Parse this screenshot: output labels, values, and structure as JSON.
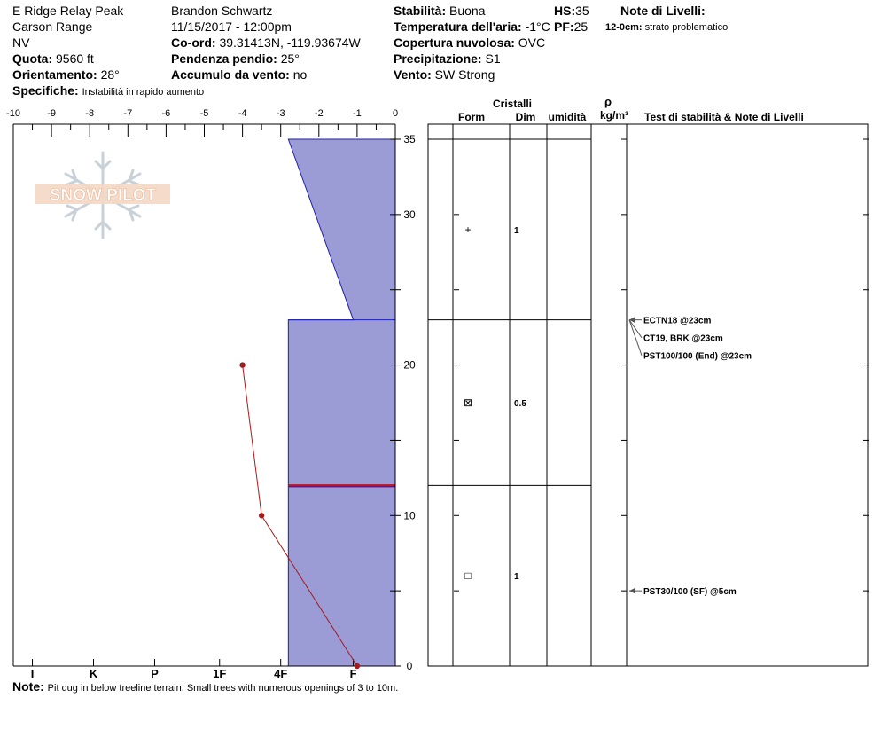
{
  "header": {
    "location": "E Ridge Relay Peak",
    "range": "Carson Range",
    "state": "NV",
    "elevation_label": "Quota:",
    "elevation": "9560 ft",
    "aspect_label": "Orientamento:",
    "aspect": "28°",
    "specifics_label": "Specifiche:",
    "specifics": "Instabilità in rapido aumento",
    "observer": "Brandon Schwartz",
    "datetime": "11/15/2017 - 12:00pm",
    "coord_label": "Co-ord:",
    "coord": "39.31413N, -119.93674W",
    "slope_label": "Pendenza pendio:",
    "slope": "25°",
    "wind_loading_label": "Accumulo da vento:",
    "wind_loading": "no",
    "stability_label": "Stabilità:",
    "stability": "Buona",
    "air_temp_label": "Temperatura dell'aria:",
    "air_temp": "-1°C",
    "sky_label": "Copertura nuvolosa:",
    "sky": "OVC",
    "precip_label": "Precipitazione:",
    "precip": "S1",
    "wind_label": "Vento:",
    "wind": "SW Strong",
    "hs_label": "HS:",
    "hs": "35",
    "pf_label": "PF:",
    "pf": "25",
    "layer_notes_label": "Note di Livelli:",
    "layer_note_depth": "12-0cm:",
    "layer_note_text": "strato problematico"
  },
  "note": {
    "label": "Note:",
    "text": "Pit dug in below treeline terrain. Small trees with numerous openings of 3 to 10m."
  },
  "logo": {
    "text": "SNOW PILOT",
    "icon": "snowflake-icon"
  },
  "colors": {
    "layer_fill": "#9b9bd6",
    "layer_edge": "#1f1fb0",
    "temp_line": "#a11d1d",
    "weak_layer": "#c1121f"
  },
  "chart_data": {
    "type": "snow-profile",
    "temp_axis": {
      "ticks": [
        -10,
        -9,
        -8,
        -7,
        -6,
        -5,
        -4,
        -3,
        -2,
        -1,
        0
      ],
      "tick_labels": [
        "-10",
        "-9",
        "-8",
        "-7",
        "-6",
        "-5",
        "-4",
        "-3",
        "-2",
        "-1",
        "0"
      ],
      "range": [
        -10,
        0
      ]
    },
    "height_axis": {
      "ticks": [
        0,
        10,
        20,
        30,
        35
      ],
      "tick_labels": [
        "0",
        "10",
        "20",
        "30",
        "35"
      ],
      "range": [
        0,
        36
      ]
    },
    "hardness_axis": {
      "labels": [
        "I",
        "K",
        "P",
        "1F",
        "4F",
        "F"
      ],
      "values": [
        9.5,
        7.9,
        6.3,
        4.6,
        3.0,
        1.1
      ]
    },
    "temperature_profile": [
      {
        "height": 20,
        "temp": -4.0
      },
      {
        "height": 10,
        "temp": -3.5
      },
      {
        "height": 0,
        "temp": -1.0
      }
    ],
    "hardness_profile": [
      {
        "height": 35,
        "temp_pos": -2.8
      },
      {
        "height": 23,
        "temp_pos": -1.1
      },
      {
        "height": 23,
        "temp_pos": -2.8
      },
      {
        "height": 0,
        "temp_pos": -2.8
      }
    ],
    "weak_layer_height": 12,
    "layer_boundaries": [
      35,
      23,
      12
    ],
    "columns": {
      "crystals": "Cristalli",
      "form": "Form",
      "size": "Dim",
      "moisture": "umidità",
      "density_symbol": "ρ",
      "density_unit": "kg/m³",
      "tests": "Test di stabilità & Note di Livelli"
    },
    "layers": [
      {
        "mid_height": 29,
        "form_symbol": "+",
        "size": "1"
      },
      {
        "mid_height": 17.5,
        "form_symbol": "⊠",
        "size": "0.5"
      },
      {
        "mid_height": 6,
        "form_symbol": "□",
        "size": "1"
      }
    ],
    "stability_tests": [
      {
        "height": 23,
        "label": "ECTN18 @23cm"
      },
      {
        "height": 23,
        "label": "CT19, BRK @23cm"
      },
      {
        "height": 23,
        "label": "PST100/100 (End) @23cm"
      },
      {
        "height": 5,
        "label": "PST30/100 (SF) @5cm"
      }
    ]
  }
}
